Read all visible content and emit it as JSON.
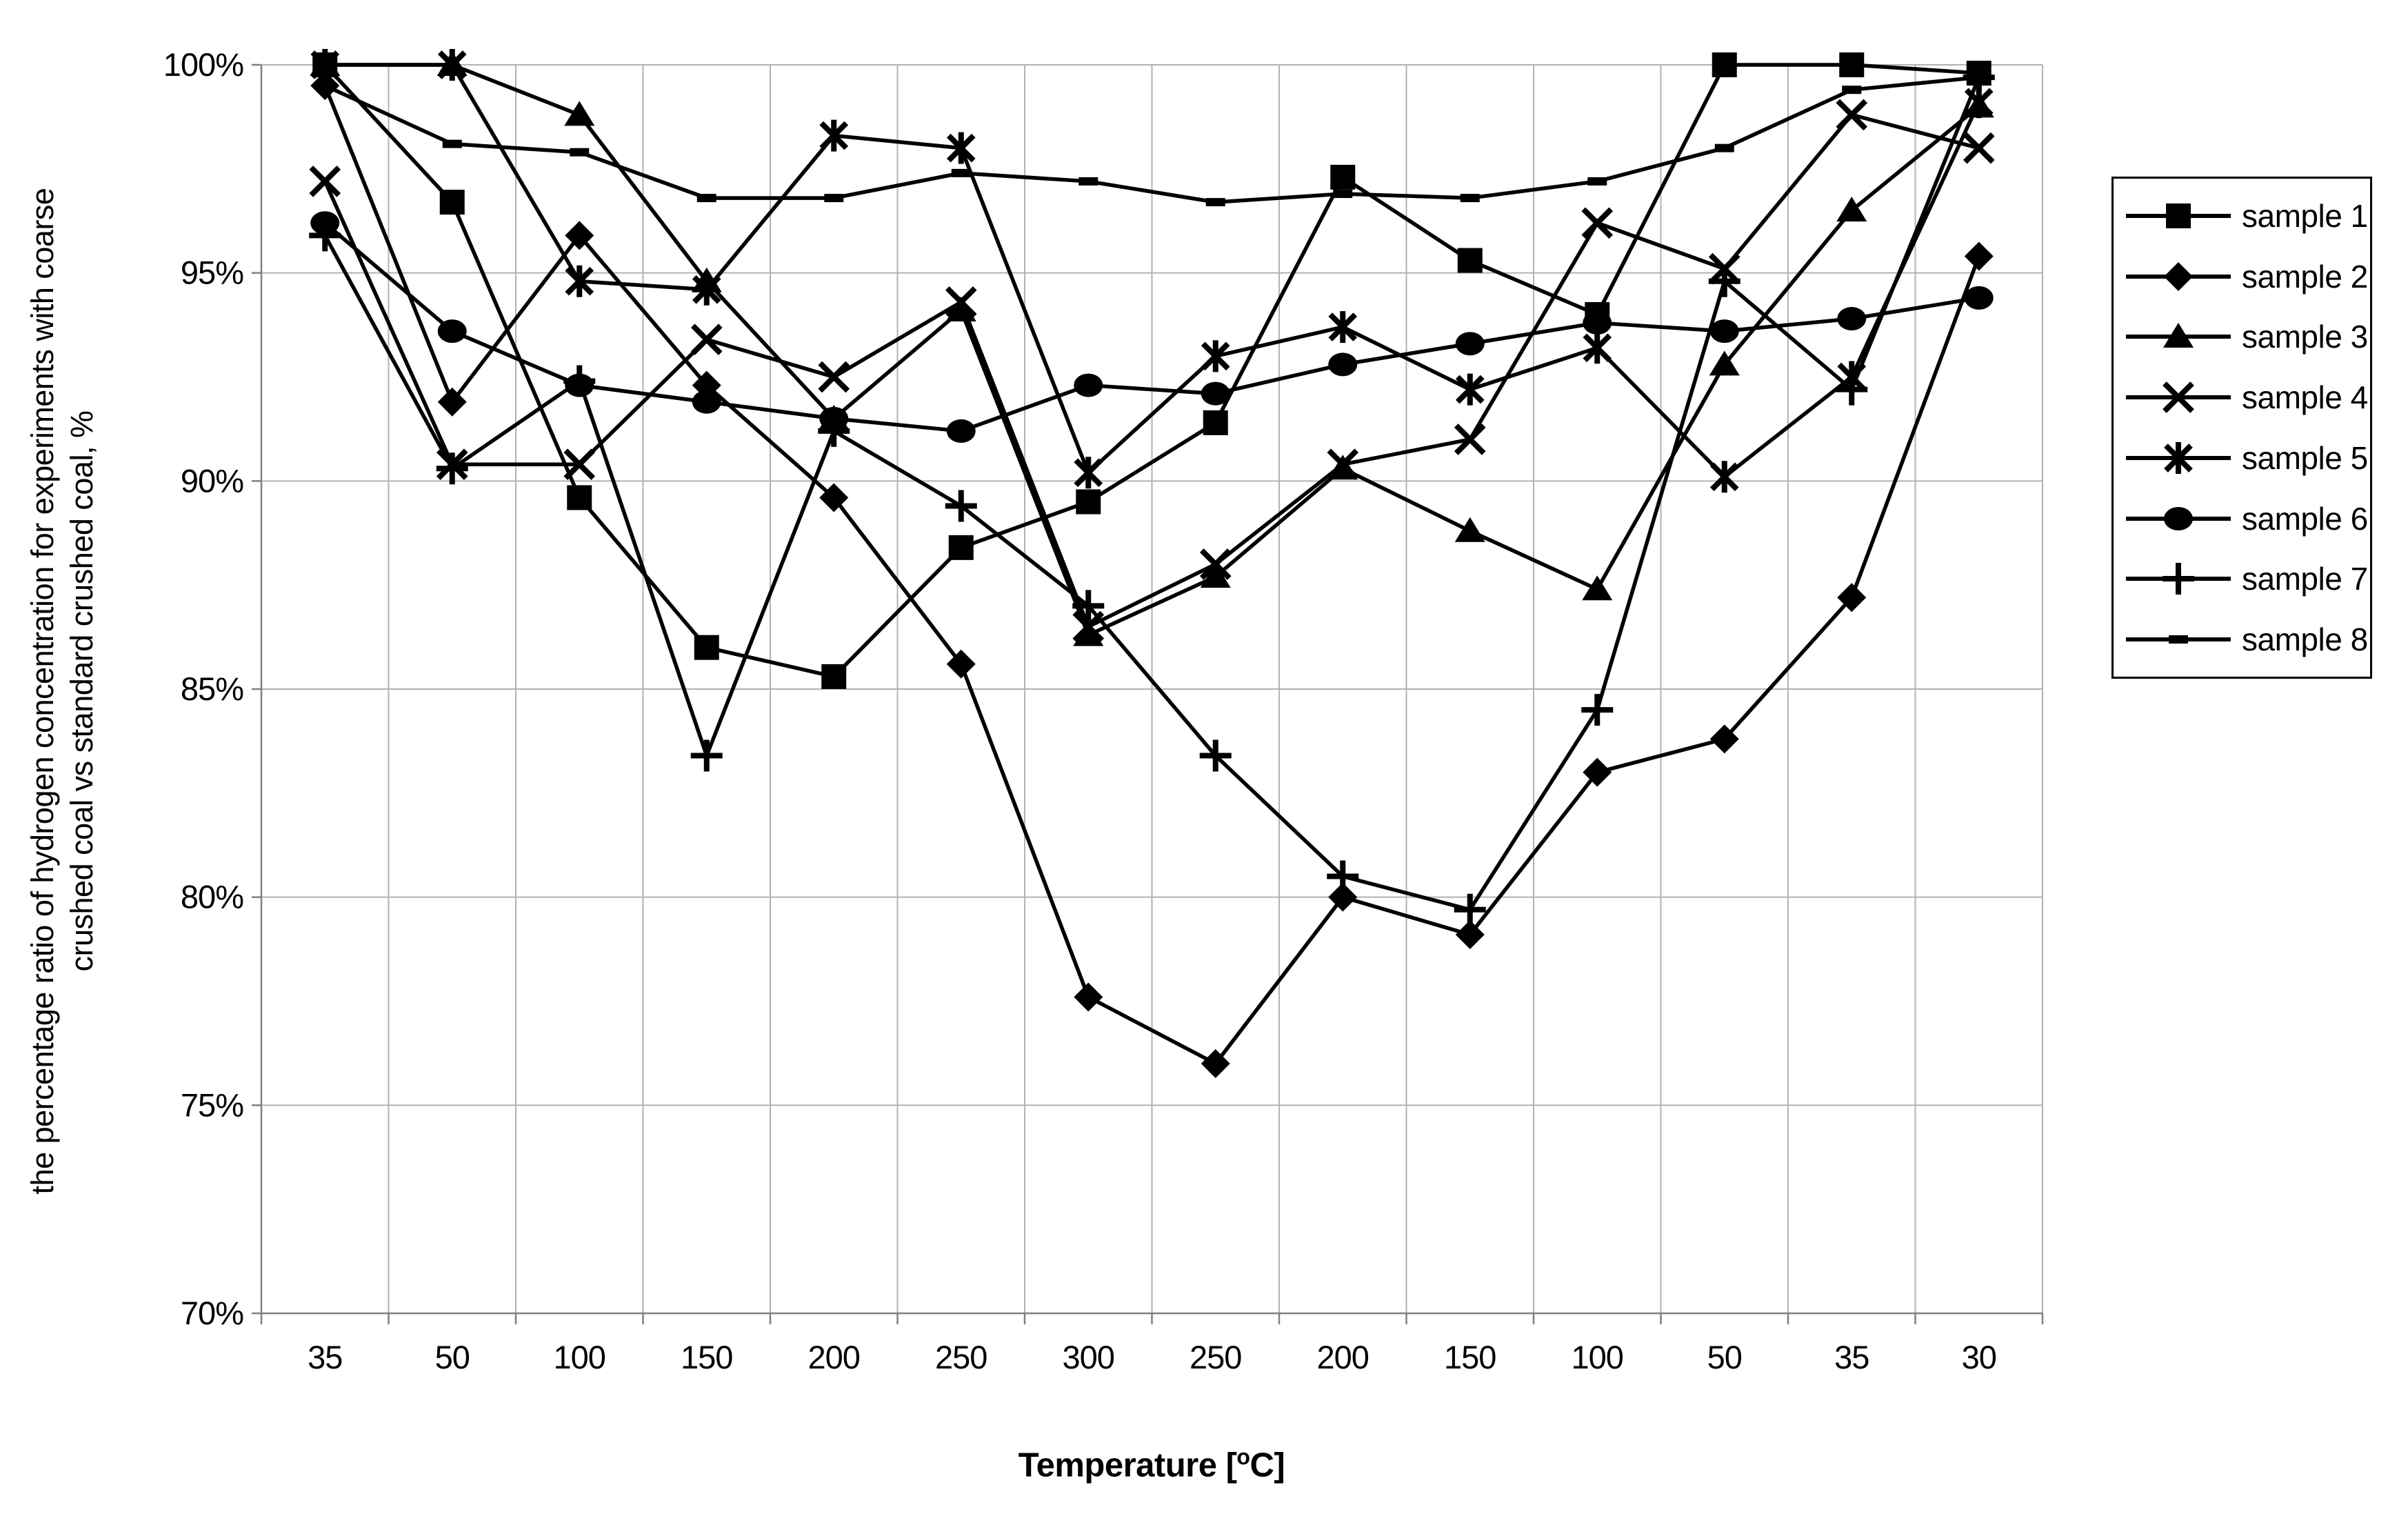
{
  "chart_data": {
    "type": "line",
    "xlabel": {
      "prefix": "Temperature [",
      "superscript": "o",
      "suffix": "C]"
    },
    "ylabel_line1": "the percentage ratio of hydrogen concentration for experiments with coarse",
    "ylabel_line2": "crushed coal vs standard crushed coal, %",
    "categories": [
      "35",
      "50",
      "100",
      "150",
      "200",
      "250",
      "300",
      "250",
      "200",
      "150",
      "100",
      "50",
      "35",
      "30"
    ],
    "ylim": [
      70,
      100
    ],
    "yticks": [
      100,
      95,
      90,
      85,
      80,
      75,
      70
    ],
    "ytick_suffix": "%",
    "grid": true,
    "legend_position": "right",
    "line_color": "#000000",
    "grid_color": "#b2b2b2",
    "axis_color": "#808080",
    "series": [
      {
        "name": "sample 1",
        "marker": "square",
        "values": [
          100,
          96.7,
          89.6,
          86.0,
          85.3,
          88.4,
          89.5,
          91.4,
          97.3,
          95.3,
          94.0,
          100,
          100,
          99.8
        ]
      },
      {
        "name": "sample 2",
        "marker": "diamond",
        "values": [
          99.5,
          91.9,
          95.9,
          92.3,
          89.6,
          85.6,
          77.6,
          76.0,
          80.0,
          79.1,
          83.0,
          83.8,
          87.2,
          95.4
        ]
      },
      {
        "name": "sample 3",
        "marker": "triangle",
        "values": [
          100,
          100,
          98.8,
          94.8,
          91.5,
          94.1,
          86.3,
          87.7,
          90.3,
          88.8,
          87.4,
          92.8,
          96.5,
          99.0
        ]
      },
      {
        "name": "sample 4",
        "marker": "x",
        "values": [
          97.2,
          90.4,
          90.4,
          93.4,
          92.5,
          94.3,
          86.5,
          88.0,
          90.4,
          91.0,
          96.2,
          95.1,
          98.8,
          98.0
        ]
      },
      {
        "name": "sample 5",
        "marker": "asterisk",
        "values": [
          100,
          100,
          94.8,
          94.6,
          98.3,
          98.0,
          90.2,
          93.0,
          93.7,
          92.2,
          93.2,
          90.1,
          92.5,
          99.1
        ]
      },
      {
        "name": "sample 6",
        "marker": "circle",
        "values": [
          96.2,
          93.6,
          92.3,
          91.9,
          91.5,
          91.2,
          92.3,
          92.1,
          92.8,
          93.3,
          93.8,
          93.6,
          93.9,
          94.4
        ]
      },
      {
        "name": "sample 7",
        "marker": "plus",
        "values": [
          95.9,
          90.3,
          92.4,
          83.4,
          91.2,
          89.4,
          87.0,
          83.4,
          80.5,
          79.7,
          84.5,
          94.8,
          92.2,
          99.7
        ]
      },
      {
        "name": "sample 8",
        "marker": "dash",
        "values": [
          99.5,
          98.1,
          97.9,
          96.8,
          96.8,
          97.4,
          97.2,
          96.7,
          96.9,
          96.8,
          97.2,
          98.0,
          99.4,
          99.7
        ]
      }
    ]
  }
}
